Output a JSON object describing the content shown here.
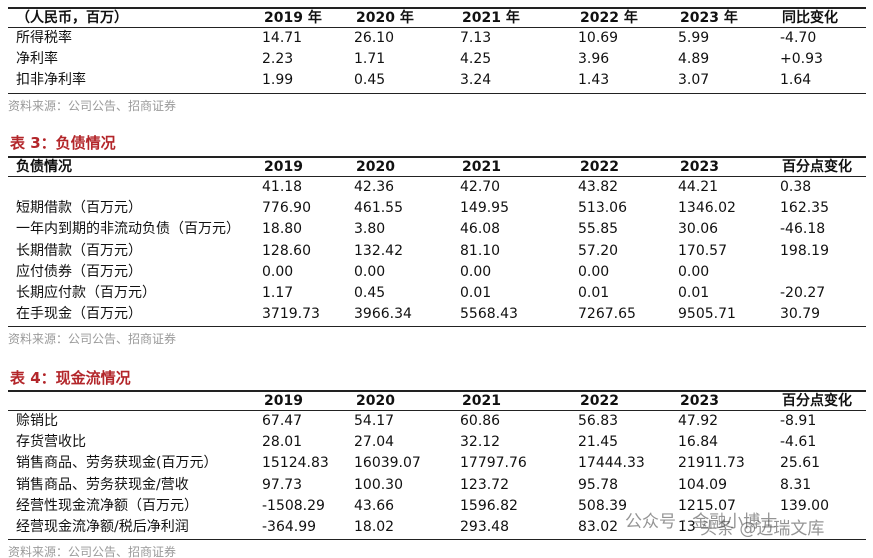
{
  "table_a": {
    "header": [
      "（人民币，百万）",
      "2019 年",
      "2020 年",
      "2021 年",
      "2022 年",
      "2023 年",
      "同比变化"
    ],
    "rows": [
      [
        "所得税率",
        "14.71",
        "26.10",
        "7.13",
        "10.69",
        "5.99",
        "-4.70"
      ],
      [
        "净利率",
        "2.23",
        "1.71",
        "4.25",
        "3.96",
        "4.89",
        "+0.93"
      ],
      [
        "扣非净利率",
        "1.99",
        "0.45",
        "3.24",
        "1.43",
        "3.07",
        "1.64"
      ]
    ],
    "source": "资料来源：公司公告、招商证券"
  },
  "table_b": {
    "title": "表 3：负债情况",
    "header": [
      "负债情况",
      "2019",
      "2020",
      "2021",
      "2022",
      "2023",
      "百分点变化"
    ],
    "rows": [
      [
        null,
        "41.18",
        "42.36",
        "42.70",
        "43.82",
        "44.21",
        "0.38"
      ],
      [
        "短期借款（百万元）",
        "776.90",
        "461.55",
        "149.95",
        "513.06",
        "1346.02",
        "162.35"
      ],
      [
        "一年内到期的非流动负债（百万元）",
        "18.80",
        "3.80",
        "46.08",
        "55.85",
        "30.06",
        "-46.18"
      ],
      [
        "长期借款（百万元）",
        "128.60",
        "132.42",
        "81.10",
        "57.20",
        "170.57",
        "198.19"
      ],
      [
        "应付债券（百万元）",
        "0.00",
        "0.00",
        "0.00",
        "0.00",
        "0.00",
        null
      ],
      [
        "长期应付款（百万元）",
        "1.17",
        "0.45",
        "0.01",
        "0.01",
        "0.01",
        "-20.27"
      ],
      [
        "在手现金（百万元）",
        "3719.73",
        "3966.34",
        "5568.43",
        "7267.65",
        "9505.71",
        "30.79"
      ]
    ],
    "source": "资料来源：公司公告、招商证券"
  },
  "table_c": {
    "title": "表 4：现金流情况",
    "header": [
      null,
      "2019",
      "2020",
      "2021",
      "2022",
      "2023",
      "百分点变化"
    ],
    "rows": [
      [
        "赊销比",
        "67.47",
        "54.17",
        "60.86",
        "56.83",
        "47.92",
        "-8.91"
      ],
      [
        "存货营收比",
        "28.01",
        "27.04",
        "32.12",
        "21.45",
        "16.84",
        "-4.61"
      ],
      [
        "销售商品、劳务获现金(百万元）",
        "15124.83",
        "16039.07",
        "17797.76",
        "17444.33",
        "21911.73",
        "25.61"
      ],
      [
        "销售商品、劳务获现金/营收",
        "97.73",
        "100.30",
        "123.72",
        "95.78",
        "104.09",
        "8.31"
      ],
      [
        "经营性现金流净额（百万元）",
        "-1508.29",
        "43.66",
        "1596.82",
        "508.39",
        "1215.07",
        "139.00"
      ],
      [
        "经营现金流净额/税后净利润",
        "-364.99",
        "18.02",
        "293.48",
        "83.02",
        "13",
        null
      ]
    ],
    "source": "资料来源：公司公告、招商证券"
  },
  "watermark": [
    "公众号 · 金融小博士",
    "头条 @迈瑞文库"
  ]
}
